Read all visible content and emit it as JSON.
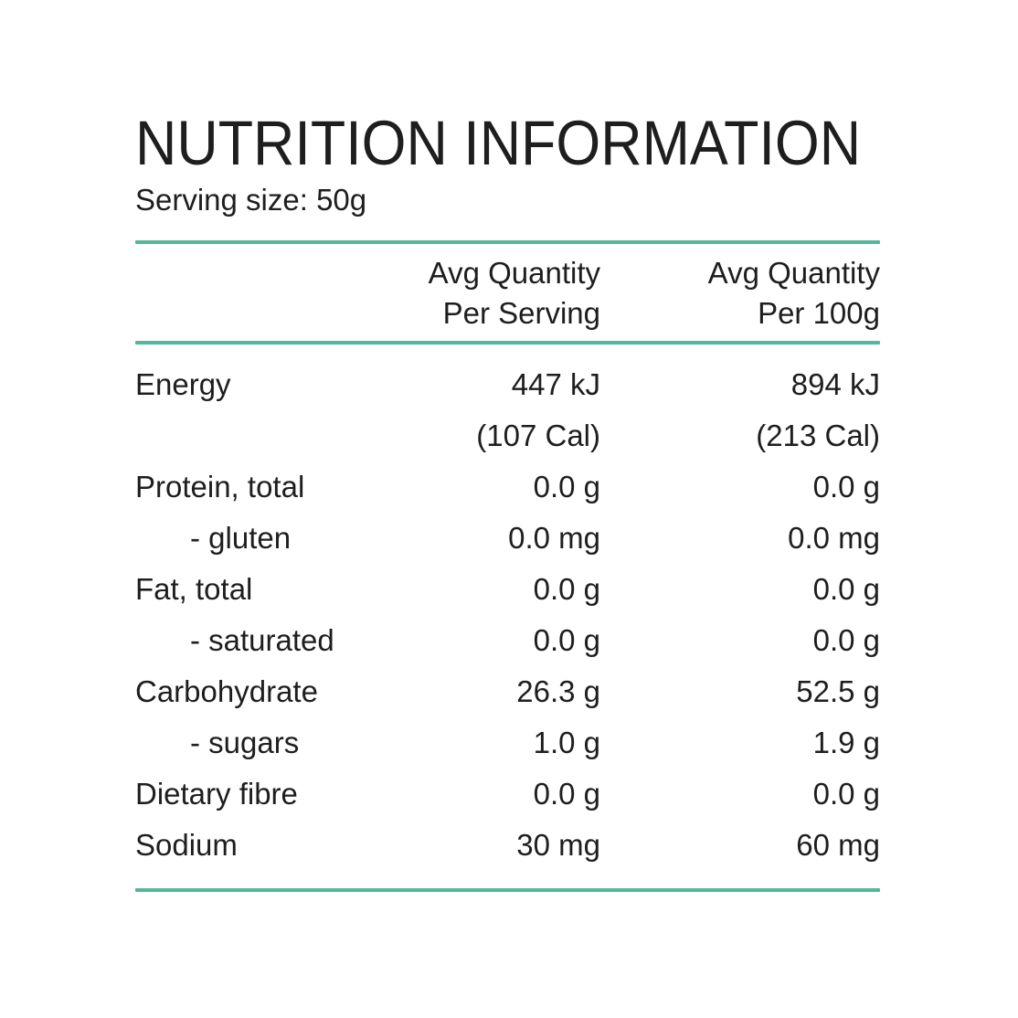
{
  "title": "NUTRITION INFORMATION",
  "serving_size": "Serving size: 50g",
  "colors": {
    "accent": "#53b79c",
    "text": "#1e1e1e",
    "background": "#ffffff"
  },
  "table": {
    "header": {
      "per_serving": {
        "line1": "Avg Quantity",
        "line2": "Per Serving"
      },
      "per_100g": {
        "line1": "Avg Quantity",
        "line2": "Per 100g"
      }
    },
    "rows": [
      {
        "label": "Energy",
        "per_serving": "447 kJ",
        "per_100g": "894 kJ"
      },
      {
        "label": "",
        "per_serving": "(107 Cal)",
        "per_100g": "(213 Cal)"
      },
      {
        "label": "Protein, total",
        "per_serving": "0.0 g",
        "per_100g": "0.0 g"
      },
      {
        "label": "- gluten",
        "per_serving": "0.0 mg",
        "per_100g": "0.0 mg"
      },
      {
        "label": "Fat, total",
        "per_serving": "0.0 g",
        "per_100g": "0.0 g"
      },
      {
        "label": "- saturated",
        "per_serving": "0.0 g",
        "per_100g": "0.0 g"
      },
      {
        "label": "Carbohydrate",
        "per_serving": "26.3 g",
        "per_100g": "52.5 g"
      },
      {
        "label": "- sugars",
        "per_serving": "1.0 g",
        "per_100g": "1.9 g"
      },
      {
        "label": "Dietary fibre",
        "per_serving": "0.0 g",
        "per_100g": "0.0 g"
      },
      {
        "label": "Sodium",
        "per_serving": "30 mg",
        "per_100g": "60 mg"
      }
    ]
  }
}
